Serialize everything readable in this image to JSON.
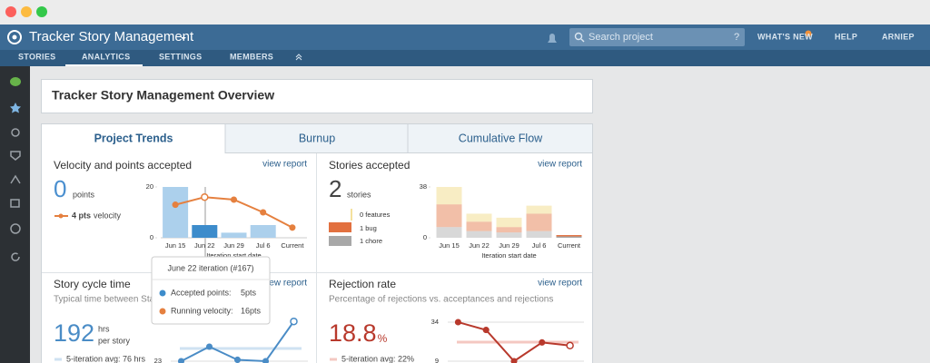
{
  "header": {
    "project": "Tracker Story Management",
    "search_placeholder": "Search project",
    "search_help": "?",
    "menu": [
      "WHAT'S NEW",
      "HELP",
      "ARNIEP"
    ]
  },
  "nav": [
    "STORIES",
    "ANALYTICS",
    "SETTINGS",
    "MEMBERS"
  ],
  "overview_title": "Tracker Story Management Overview",
  "tabs": [
    "Project Trends",
    "Burnup",
    "Cumulative Flow"
  ],
  "velocity": {
    "title": "Velocity and points accepted",
    "link": "view report",
    "big": "0",
    "unit": "points",
    "legend_value": "4 pts",
    "legend_label": "velocity",
    "chart": {
      "type": "bar",
      "categories": [
        "Jun 15",
        "Jun 22",
        "Jun 29",
        "Jul 6",
        "Current"
      ],
      "x_label": "Iteration start date",
      "ylim": [
        0,
        20
      ],
      "yticks": [
        0,
        20
      ],
      "highlight": 1,
      "highlight_color": "#3d8ccb",
      "series": [
        {
          "color": "#acd0ec",
          "values": [
            20,
            5,
            2,
            5,
            0
          ]
        },
        {
          "color": "#e5803f",
          "values": [
            13,
            16,
            15,
            10,
            4
          ]
        }
      ]
    }
  },
  "stories": {
    "title": "Stories accepted",
    "link": "view report",
    "big": "2",
    "unit": "stories",
    "legend": [
      "0 features",
      "1 bug",
      "1 chore"
    ],
    "chart": {
      "type": "stacked-bar",
      "categories": [
        "Jun 15",
        "Jun 22",
        "Jun 29",
        "Jul 6",
        "Current"
      ],
      "x_label": "Iteration start date",
      "ylim": [
        0,
        38
      ],
      "yticks": [
        0,
        38
      ],
      "series": [
        {
          "color": "#a8a8a8",
          "values": [
            8,
            5,
            4,
            5,
            1
          ]
        },
        {
          "color": "#e2703f",
          "values": [
            17,
            7,
            4,
            13,
            1
          ]
        },
        {
          "color": "#f0d77c",
          "values": [
            13,
            6,
            7,
            6,
            0
          ]
        }
      ]
    }
  },
  "tooltip": {
    "title": "June 22 iteration (#167)",
    "rows": [
      [
        "Accepted points:",
        "5pts"
      ],
      [
        "Running velocity:",
        "16pts"
      ]
    ],
    "colors": [
      "#3d8ccb",
      "#e5803f"
    ]
  },
  "cycle": {
    "title": "Story cycle time",
    "link": "view report",
    "subtitle": "Typical time between Start",
    "big": "192",
    "unit": "hrs",
    "unit2": "per story",
    "avg": "5-iteration avg: 76 hrs",
    "chart": {
      "type": "line",
      "color": "#4a8cc6",
      "ylim": [
        23,
        170
      ],
      "yticks": [
        23
      ],
      "values": [
        23,
        65,
        27,
        23,
        138
      ]
    }
  },
  "rejection": {
    "title": "Rejection rate",
    "link": "view report",
    "subtitle": "Percentage of rejections vs. acceptances and rejections",
    "big": "18.8",
    "unit": "%",
    "avg": "5-iteration avg: 22%",
    "chart": {
      "type": "line",
      "color": "#b8392c",
      "ylim": [
        9,
        34
      ],
      "yticks": [
        9,
        34
      ],
      "values": [
        34,
        29,
        9,
        21,
        19
      ]
    }
  }
}
